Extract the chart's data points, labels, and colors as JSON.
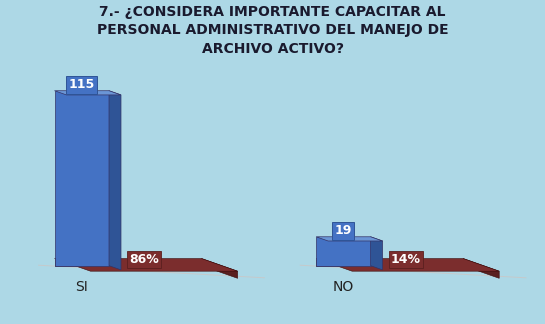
{
  "title_line1": "7.- ¿CONSIDERA IMPORTANTE CAPACITAR AL",
  "title_line2": "PERSONAL ADMINISTRATIVO DEL MANEJO DE",
  "title_line3": "ARCHIVO ACTIVO?",
  "categories": [
    "SI",
    "NO"
  ],
  "values": [
    115,
    19
  ],
  "percentages": [
    "86%",
    "14%"
  ],
  "bar_color_front": "#4472C4",
  "bar_color_side": "#2F5496",
  "bar_color_top": "#6B96D6",
  "pct_bar_color": "#7B2D2D",
  "pct_bar_side": "#5a1f1f",
  "background_color": "#ADD8E6",
  "shadow_color": "#C8C8C8",
  "title_fontsize": 10,
  "tick_fontsize": 10,
  "label_fontsize": 9
}
